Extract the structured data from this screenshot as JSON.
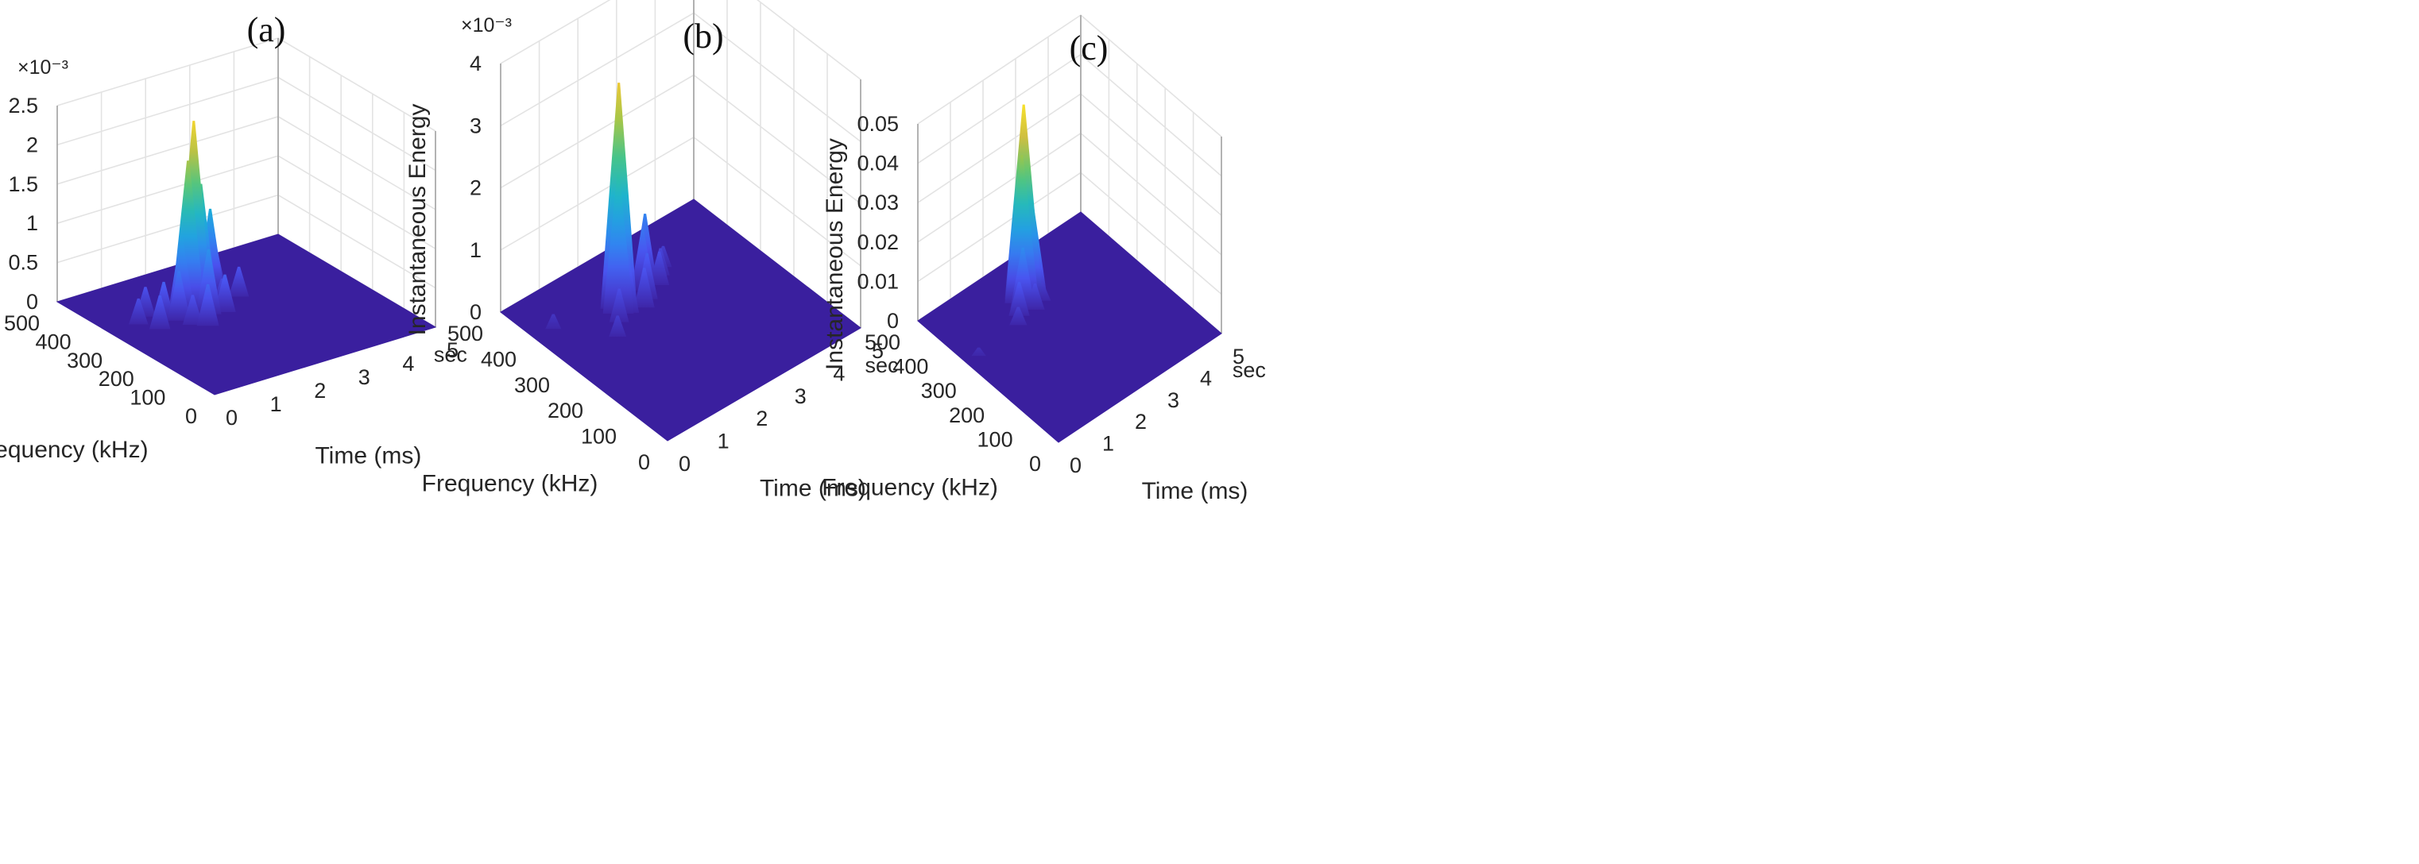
{
  "colors": {
    "floor": "#3a1f9e",
    "colormap": [
      "#3e26a8",
      "#4a52f0",
      "#2f89f0",
      "#1bb0d6",
      "#33c39a",
      "#8dc94e",
      "#e8bb3a",
      "#f9e72a"
    ],
    "grid": "#e3e3e3",
    "axis": "#9a9a9a"
  },
  "chart_data": [
    {
      "panel": "(a)",
      "type": "surface3d",
      "zlabel": "Instantaneous Energy",
      "xlabel": "Time (ms)",
      "ylabel": "Frequency (kHz)",
      "time_unit_label": "sec",
      "z_exponent_label": "×10⁻³",
      "z_ticks": [
        "0",
        "0.5",
        "1",
        "1.5",
        "2",
        "2.5"
      ],
      "zlim": [
        0,
        0.0025
      ],
      "time_ticks": [
        "0",
        "1",
        "2",
        "3",
        "4",
        "5"
      ],
      "time_lim": [
        0,
        5
      ],
      "freq_ticks": [
        "0",
        "100",
        "200",
        "300",
        "400",
        "500"
      ],
      "freq_lim": [
        0,
        500
      ],
      "peak": {
        "time_ms": 1.95,
        "freq_khz": 340,
        "energy": 0.00235
      },
      "spikes": [
        {
          "t": 1.75,
          "f": 330,
          "z": 0.0019
        },
        {
          "t": 2.15,
          "f": 345,
          "z": 0.0015
        },
        {
          "t": 2.1,
          "f": 360,
          "z": 0.00095
        },
        {
          "t": 2.35,
          "f": 365,
          "z": 0.0011
        },
        {
          "t": 2.55,
          "f": 372,
          "z": 0.00105
        },
        {
          "t": 1.6,
          "f": 330,
          "z": 0.00095
        },
        {
          "t": 2.0,
          "f": 300,
          "z": 0.0008
        },
        {
          "t": 1.4,
          "f": 310,
          "z": 0.0006
        },
        {
          "t": 2.7,
          "f": 380,
          "z": 0.0006
        },
        {
          "t": 1.2,
          "f": 330,
          "z": 0.00045
        },
        {
          "t": 0.9,
          "f": 300,
          "z": 0.0004
        },
        {
          "t": 1.7,
          "f": 260,
          "z": 0.0005
        },
        {
          "t": 2.3,
          "f": 290,
          "z": 0.00045
        },
        {
          "t": 1.0,
          "f": 360,
          "z": 0.00035
        },
        {
          "t": 2.9,
          "f": 330,
          "z": 0.00035
        },
        {
          "t": 1.5,
          "f": 280,
          "z": 0.00035
        },
        {
          "t": 0.7,
          "f": 340,
          "z": 0.0003
        },
        {
          "t": 2.45,
          "f": 320,
          "z": 0.0003
        }
      ]
    },
    {
      "panel": "(b)",
      "type": "surface3d",
      "zlabel": "Instantaneous Energy",
      "xlabel": "Time (ms)",
      "ylabel": "Frequency (kHz)",
      "time_unit_label": "sec",
      "z_exponent_label": "×10⁻³",
      "z_ticks": [
        "0",
        "1",
        "2",
        "3",
        "4"
      ],
      "zlim": [
        0,
        0.004
      ],
      "time_ticks": [
        "0",
        "1",
        "2",
        "3",
        "4",
        "5"
      ],
      "time_lim": [
        0,
        5
      ],
      "freq_ticks": [
        "0",
        "100",
        "200",
        "300",
        "400",
        "500"
      ],
      "freq_lim": [
        0,
        500
      ],
      "peak": {
        "time_ms": 1.85,
        "freq_khz": 360,
        "energy": 0.0036
      },
      "spikes": [
        {
          "t": 1.75,
          "f": 350,
          "z": 0.0022
        },
        {
          "t": 1.95,
          "f": 370,
          "z": 0.0015
        },
        {
          "t": 1.9,
          "f": 340,
          "z": 0.0009
        },
        {
          "t": 2.55,
          "f": 370,
          "z": 0.00095
        },
        {
          "t": 2.7,
          "f": 380,
          "z": 0.0011
        },
        {
          "t": 2.45,
          "f": 345,
          "z": 0.0007
        },
        {
          "t": 2.25,
          "f": 330,
          "z": 0.0006
        },
        {
          "t": 2.9,
          "f": 360,
          "z": 0.0005
        },
        {
          "t": 3.1,
          "f": 380,
          "z": 0.0004
        },
        {
          "t": 1.6,
          "f": 330,
          "z": 0.0005
        },
        {
          "t": 3.3,
          "f": 395,
          "z": 0.0003
        },
        {
          "t": 1.3,
          "f": 300,
          "z": 0.0003
        },
        {
          "t": 0.5,
          "f": 400,
          "z": 0.0002
        }
      ]
    },
    {
      "panel": "(c)",
      "type": "surface3d",
      "zlabel": "Instantaneous Energy",
      "xlabel": "Time (ms)",
      "ylabel": "Frequency (kHz)",
      "time_unit_label": "sec",
      "z_exponent_label": "",
      "z_ticks": [
        "0",
        "0.01",
        "0.02",
        "0.03",
        "0.04",
        "0.05"
      ],
      "zlim": [
        0,
        0.05
      ],
      "time_ticks": [
        "0",
        "1",
        "2",
        "3",
        "4",
        "5"
      ],
      "time_lim": [
        0,
        5
      ],
      "freq_ticks": [
        "0",
        "100",
        "200",
        "300",
        "400",
        "500"
      ],
      "freq_lim": [
        0,
        500
      ],
      "peak": {
        "time_ms": 2.3,
        "freq_khz": 390,
        "energy": 0.049
      },
      "spikes": [
        {
          "t": 2.2,
          "f": 385,
          "z": 0.037
        },
        {
          "t": 2.4,
          "f": 395,
          "z": 0.03
        },
        {
          "t": 2.5,
          "f": 380,
          "z": 0.022
        },
        {
          "t": 2.1,
          "f": 370,
          "z": 0.015
        },
        {
          "t": 2.7,
          "f": 400,
          "z": 0.012
        },
        {
          "t": 1.9,
          "f": 360,
          "z": 0.008
        },
        {
          "t": 2.3,
          "f": 350,
          "z": 0.006
        },
        {
          "t": 1.7,
          "f": 340,
          "z": 0.004
        },
        {
          "t": 2.6,
          "f": 360,
          "z": 0.004
        },
        {
          "t": 0.4,
          "f": 330,
          "z": 0.0015
        }
      ]
    }
  ]
}
